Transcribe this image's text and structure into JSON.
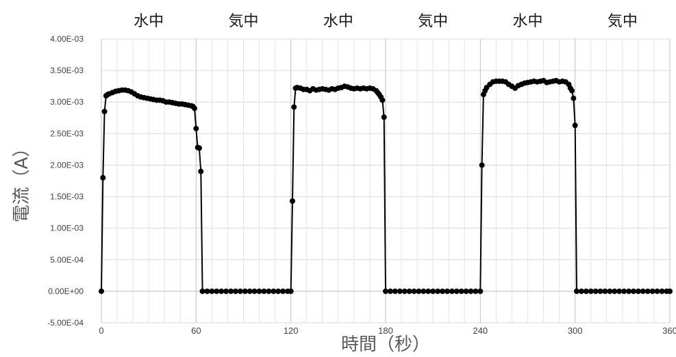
{
  "chart_data": {
    "type": "scatter",
    "ylabel": "電流（A）",
    "xlabel": "時間（秒）",
    "xlim": [
      0,
      360
    ],
    "ylim": [
      -0.0005,
      0.004
    ],
    "x_ticks": [
      0,
      60,
      120,
      180,
      240,
      300,
      360
    ],
    "x_tick_labels": [
      "0",
      "60",
      "120",
      "180",
      "240",
      "300",
      "360"
    ],
    "y_ticks": [
      -0.0005,
      0,
      0.0005,
      0.001,
      0.0015,
      0.002,
      0.0025,
      0.003,
      0.0035,
      0.004
    ],
    "y_tick_labels": [
      "-5.00E-04",
      "0.00E+00",
      "5.00E-04",
      "1.00E-03",
      "1.50E-03",
      "2.00E-03",
      "2.50E-03",
      "3.00E-03",
      "3.50E-03",
      "4.00E-03"
    ],
    "grid": true,
    "phase_labels": [
      {
        "label": "水中",
        "x_center": 30
      },
      {
        "label": "気中",
        "x_center": 90
      },
      {
        "label": "水中",
        "x_center": 150
      },
      {
        "label": "気中",
        "x_center": 210
      },
      {
        "label": "水中",
        "x_center": 270
      },
      {
        "label": "気中",
        "x_center": 330
      }
    ],
    "series": [
      {
        "marker_color": "#000000",
        "points": [
          [
            0,
            0
          ],
          [
            1,
            0.0018
          ],
          [
            2,
            0.00285
          ],
          [
            3,
            0.0031
          ],
          [
            4,
            0.00312
          ],
          [
            5,
            0.00313
          ],
          [
            7,
            0.00315
          ],
          [
            9,
            0.00317
          ],
          [
            11,
            0.00318
          ],
          [
            13,
            0.00319
          ],
          [
            15,
            0.00319
          ],
          [
            17,
            0.00318
          ],
          [
            19,
            0.00316
          ],
          [
            21,
            0.00313
          ],
          [
            23,
            0.0031
          ],
          [
            25,
            0.00308
          ],
          [
            27,
            0.00307
          ],
          [
            29,
            0.00306
          ],
          [
            31,
            0.00305
          ],
          [
            33,
            0.00304
          ],
          [
            35,
            0.00303
          ],
          [
            37,
            0.00303
          ],
          [
            39,
            0.00302
          ],
          [
            41,
            0.003
          ],
          [
            43,
            0.003
          ],
          [
            45,
            0.00299
          ],
          [
            47,
            0.00298
          ],
          [
            49,
            0.00297
          ],
          [
            51,
            0.00297
          ],
          [
            53,
            0.00296
          ],
          [
            55,
            0.00295
          ],
          [
            57,
            0.00294
          ],
          [
            58,
            0.00293
          ],
          [
            59,
            0.0029
          ],
          [
            60,
            0.00258
          ],
          [
            61,
            0.00228
          ],
          [
            62,
            0.00227
          ],
          [
            63,
            0.0019
          ],
          [
            64,
            0
          ],
          [
            67,
            0
          ],
          [
            70,
            0
          ],
          [
            73,
            0
          ],
          [
            76,
            0
          ],
          [
            79,
            0
          ],
          [
            82,
            0
          ],
          [
            85,
            0
          ],
          [
            88,
            0
          ],
          [
            91,
            0
          ],
          [
            94,
            0
          ],
          [
            97,
            0
          ],
          [
            100,
            0
          ],
          [
            103,
            0
          ],
          [
            106,
            0
          ],
          [
            109,
            0
          ],
          [
            112,
            0
          ],
          [
            115,
            0
          ],
          [
            118,
            0
          ],
          [
            120,
            0
          ],
          [
            121,
            0.00143
          ],
          [
            122,
            0.00292
          ],
          [
            123,
            0.00322
          ],
          [
            124,
            0.00323
          ],
          [
            126,
            0.00322
          ],
          [
            128,
            0.0032
          ],
          [
            130,
            0.0032
          ],
          [
            132,
            0.00318
          ],
          [
            134,
            0.00321
          ],
          [
            136,
            0.00319
          ],
          [
            138,
            0.0032
          ],
          [
            140,
            0.00321
          ],
          [
            142,
            0.0032
          ],
          [
            144,
            0.00319
          ],
          [
            146,
            0.00321
          ],
          [
            148,
            0.0032
          ],
          [
            150,
            0.00322
          ],
          [
            152,
            0.00323
          ],
          [
            154,
            0.00325
          ],
          [
            156,
            0.00324
          ],
          [
            158,
            0.00322
          ],
          [
            160,
            0.00321
          ],
          [
            162,
            0.00322
          ],
          [
            164,
            0.00321
          ],
          [
            166,
            0.00322
          ],
          [
            168,
            0.00321
          ],
          [
            170,
            0.00322
          ],
          [
            172,
            0.00321
          ],
          [
            174,
            0.00318
          ],
          [
            175,
            0.00315
          ],
          [
            176,
            0.00312
          ],
          [
            177,
            0.00308
          ],
          [
            178,
            0.00303
          ],
          [
            179,
            0.00276
          ],
          [
            180,
            0
          ],
          [
            183,
            0
          ],
          [
            186,
            0
          ],
          [
            189,
            0
          ],
          [
            192,
            0
          ],
          [
            195,
            0
          ],
          [
            198,
            0
          ],
          [
            201,
            0
          ],
          [
            204,
            0
          ],
          [
            207,
            0
          ],
          [
            210,
            0
          ],
          [
            213,
            0
          ],
          [
            216,
            0
          ],
          [
            219,
            0
          ],
          [
            222,
            0
          ],
          [
            225,
            0
          ],
          [
            228,
            0
          ],
          [
            231,
            0
          ],
          [
            234,
            0
          ],
          [
            237,
            0
          ],
          [
            240,
            0
          ],
          [
            241,
            0.002
          ],
          [
            242,
            0.00312
          ],
          [
            243,
            0.00318
          ],
          [
            244,
            0.00323
          ],
          [
            246,
            0.00328
          ],
          [
            248,
            0.00332
          ],
          [
            250,
            0.00333
          ],
          [
            252,
            0.00333
          ],
          [
            254,
            0.00333
          ],
          [
            256,
            0.00332
          ],
          [
            258,
            0.00328
          ],
          [
            260,
            0.00325
          ],
          [
            262,
            0.00322
          ],
          [
            264,
            0.00326
          ],
          [
            266,
            0.00328
          ],
          [
            268,
            0.0033
          ],
          [
            270,
            0.00331
          ],
          [
            272,
            0.00332
          ],
          [
            274,
            0.00333
          ],
          [
            276,
            0.00332
          ],
          [
            278,
            0.00333
          ],
          [
            280,
            0.00334
          ],
          [
            282,
            0.00331
          ],
          [
            284,
            0.00332
          ],
          [
            286,
            0.00333
          ],
          [
            288,
            0.00334
          ],
          [
            290,
            0.00332
          ],
          [
            292,
            0.00333
          ],
          [
            294,
            0.00332
          ],
          [
            296,
            0.00328
          ],
          [
            297,
            0.00322
          ],
          [
            298,
            0.00318
          ],
          [
            299,
            0.00306
          ],
          [
            300,
            0.00263
          ],
          [
            301,
            0
          ],
          [
            304,
            0
          ],
          [
            307,
            0
          ],
          [
            310,
            0
          ],
          [
            313,
            0
          ],
          [
            316,
            0
          ],
          [
            319,
            0
          ],
          [
            322,
            0
          ],
          [
            325,
            0
          ],
          [
            328,
            0
          ],
          [
            331,
            0
          ],
          [
            334,
            0
          ],
          [
            337,
            0
          ],
          [
            340,
            0
          ],
          [
            343,
            0
          ],
          [
            346,
            0
          ],
          [
            349,
            0
          ],
          [
            352,
            0
          ],
          [
            355,
            0
          ],
          [
            358,
            0
          ],
          [
            360,
            0
          ]
        ]
      }
    ]
  }
}
